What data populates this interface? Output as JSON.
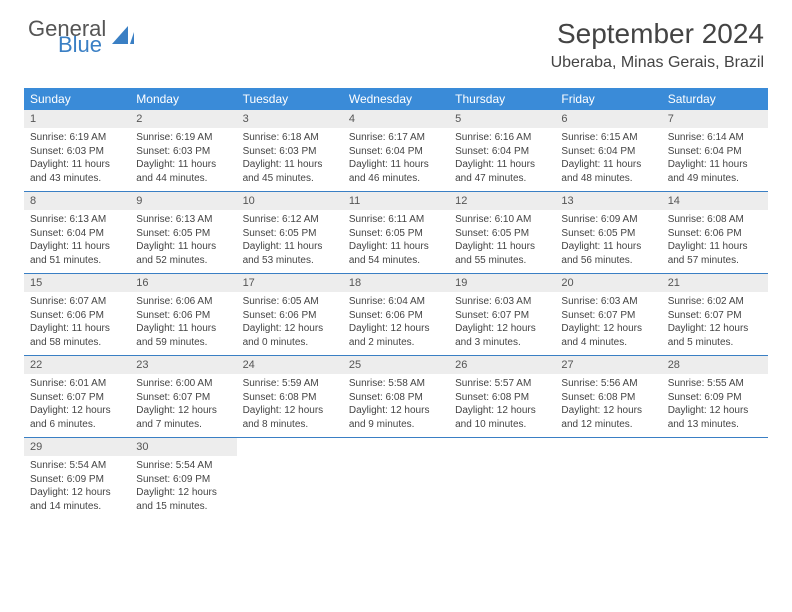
{
  "brand": {
    "general": "General",
    "blue": "Blue"
  },
  "title": "September 2024",
  "location": "Uberaba, Minas Gerais, Brazil",
  "colors": {
    "header_bg": "#3a8bd8",
    "header_text": "#ffffff",
    "daynum_bg": "#ededed",
    "rule": "#3a7fc4",
    "text": "#444444",
    "brand_blue": "#3a7fc4"
  },
  "weekdays": [
    "Sunday",
    "Monday",
    "Tuesday",
    "Wednesday",
    "Thursday",
    "Friday",
    "Saturday"
  ],
  "weeks": [
    [
      {
        "n": "1",
        "sr": "Sunrise: 6:19 AM",
        "ss": "Sunset: 6:03 PM",
        "dl": "Daylight: 11 hours and 43 minutes."
      },
      {
        "n": "2",
        "sr": "Sunrise: 6:19 AM",
        "ss": "Sunset: 6:03 PM",
        "dl": "Daylight: 11 hours and 44 minutes."
      },
      {
        "n": "3",
        "sr": "Sunrise: 6:18 AM",
        "ss": "Sunset: 6:03 PM",
        "dl": "Daylight: 11 hours and 45 minutes."
      },
      {
        "n": "4",
        "sr": "Sunrise: 6:17 AM",
        "ss": "Sunset: 6:04 PM",
        "dl": "Daylight: 11 hours and 46 minutes."
      },
      {
        "n": "5",
        "sr": "Sunrise: 6:16 AM",
        "ss": "Sunset: 6:04 PM",
        "dl": "Daylight: 11 hours and 47 minutes."
      },
      {
        "n": "6",
        "sr": "Sunrise: 6:15 AM",
        "ss": "Sunset: 6:04 PM",
        "dl": "Daylight: 11 hours and 48 minutes."
      },
      {
        "n": "7",
        "sr": "Sunrise: 6:14 AM",
        "ss": "Sunset: 6:04 PM",
        "dl": "Daylight: 11 hours and 49 minutes."
      }
    ],
    [
      {
        "n": "8",
        "sr": "Sunrise: 6:13 AM",
        "ss": "Sunset: 6:04 PM",
        "dl": "Daylight: 11 hours and 51 minutes."
      },
      {
        "n": "9",
        "sr": "Sunrise: 6:13 AM",
        "ss": "Sunset: 6:05 PM",
        "dl": "Daylight: 11 hours and 52 minutes."
      },
      {
        "n": "10",
        "sr": "Sunrise: 6:12 AM",
        "ss": "Sunset: 6:05 PM",
        "dl": "Daylight: 11 hours and 53 minutes."
      },
      {
        "n": "11",
        "sr": "Sunrise: 6:11 AM",
        "ss": "Sunset: 6:05 PM",
        "dl": "Daylight: 11 hours and 54 minutes."
      },
      {
        "n": "12",
        "sr": "Sunrise: 6:10 AM",
        "ss": "Sunset: 6:05 PM",
        "dl": "Daylight: 11 hours and 55 minutes."
      },
      {
        "n": "13",
        "sr": "Sunrise: 6:09 AM",
        "ss": "Sunset: 6:05 PM",
        "dl": "Daylight: 11 hours and 56 minutes."
      },
      {
        "n": "14",
        "sr": "Sunrise: 6:08 AM",
        "ss": "Sunset: 6:06 PM",
        "dl": "Daylight: 11 hours and 57 minutes."
      }
    ],
    [
      {
        "n": "15",
        "sr": "Sunrise: 6:07 AM",
        "ss": "Sunset: 6:06 PM",
        "dl": "Daylight: 11 hours and 58 minutes."
      },
      {
        "n": "16",
        "sr": "Sunrise: 6:06 AM",
        "ss": "Sunset: 6:06 PM",
        "dl": "Daylight: 11 hours and 59 minutes."
      },
      {
        "n": "17",
        "sr": "Sunrise: 6:05 AM",
        "ss": "Sunset: 6:06 PM",
        "dl": "Daylight: 12 hours and 0 minutes."
      },
      {
        "n": "18",
        "sr": "Sunrise: 6:04 AM",
        "ss": "Sunset: 6:06 PM",
        "dl": "Daylight: 12 hours and 2 minutes."
      },
      {
        "n": "19",
        "sr": "Sunrise: 6:03 AM",
        "ss": "Sunset: 6:07 PM",
        "dl": "Daylight: 12 hours and 3 minutes."
      },
      {
        "n": "20",
        "sr": "Sunrise: 6:03 AM",
        "ss": "Sunset: 6:07 PM",
        "dl": "Daylight: 12 hours and 4 minutes."
      },
      {
        "n": "21",
        "sr": "Sunrise: 6:02 AM",
        "ss": "Sunset: 6:07 PM",
        "dl": "Daylight: 12 hours and 5 minutes."
      }
    ],
    [
      {
        "n": "22",
        "sr": "Sunrise: 6:01 AM",
        "ss": "Sunset: 6:07 PM",
        "dl": "Daylight: 12 hours and 6 minutes."
      },
      {
        "n": "23",
        "sr": "Sunrise: 6:00 AM",
        "ss": "Sunset: 6:07 PM",
        "dl": "Daylight: 12 hours and 7 minutes."
      },
      {
        "n": "24",
        "sr": "Sunrise: 5:59 AM",
        "ss": "Sunset: 6:08 PM",
        "dl": "Daylight: 12 hours and 8 minutes."
      },
      {
        "n": "25",
        "sr": "Sunrise: 5:58 AM",
        "ss": "Sunset: 6:08 PM",
        "dl": "Daylight: 12 hours and 9 minutes."
      },
      {
        "n": "26",
        "sr": "Sunrise: 5:57 AM",
        "ss": "Sunset: 6:08 PM",
        "dl": "Daylight: 12 hours and 10 minutes."
      },
      {
        "n": "27",
        "sr": "Sunrise: 5:56 AM",
        "ss": "Sunset: 6:08 PM",
        "dl": "Daylight: 12 hours and 12 minutes."
      },
      {
        "n": "28",
        "sr": "Sunrise: 5:55 AM",
        "ss": "Sunset: 6:09 PM",
        "dl": "Daylight: 12 hours and 13 minutes."
      }
    ],
    [
      {
        "n": "29",
        "sr": "Sunrise: 5:54 AM",
        "ss": "Sunset: 6:09 PM",
        "dl": "Daylight: 12 hours and 14 minutes."
      },
      {
        "n": "30",
        "sr": "Sunrise: 5:54 AM",
        "ss": "Sunset: 6:09 PM",
        "dl": "Daylight: 12 hours and 15 minutes."
      },
      null,
      null,
      null,
      null,
      null
    ]
  ]
}
